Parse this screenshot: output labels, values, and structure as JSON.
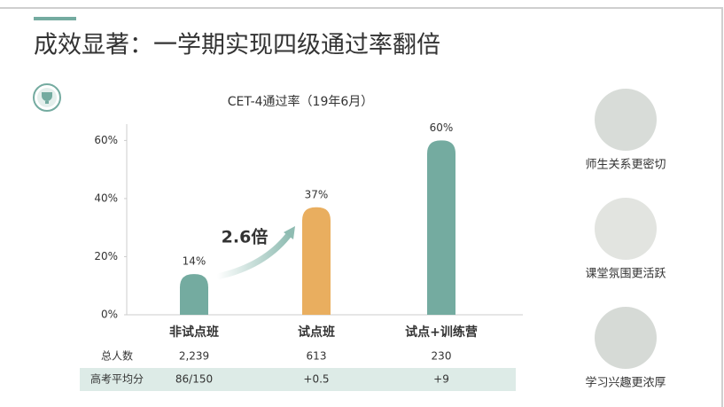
{
  "slide_title": "成效显著：一学期实现四级通过率翻倍",
  "chart_data": {
    "type": "bar",
    "title": "CET-4通过率（19年6月）",
    "categories": [
      "非试点班",
      "试点班",
      "试点+训练营"
    ],
    "values": [
      14,
      37,
      60
    ],
    "value_labels": [
      "14%",
      "37%",
      "60%"
    ],
    "colors": [
      "#74aba0",
      "#e9ae5f",
      "#74aba0"
    ],
    "ylim": [
      0,
      65
    ],
    "yticks": [
      {
        "value": 0,
        "label": "0%"
      },
      {
        "value": 20,
        "label": "20%"
      },
      {
        "value": 40,
        "label": "40%"
      },
      {
        "value": 60,
        "label": "60%"
      }
    ],
    "annotation": "2.6倍"
  },
  "table": {
    "rows": [
      [
        "总人数",
        "2,239",
        "613",
        "230"
      ],
      [
        "高考平均分",
        "86/150",
        "+0.5",
        "+9"
      ]
    ]
  },
  "side_items": [
    "师生关系更密切",
    "课堂氛围更活跃",
    "学习兴趣更浓厚"
  ]
}
